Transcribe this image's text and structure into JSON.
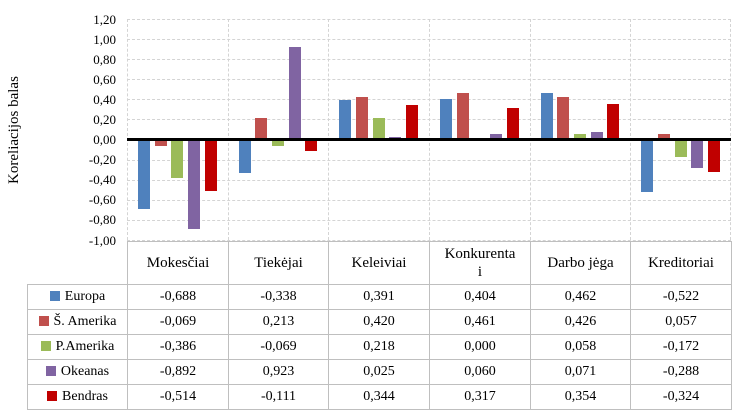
{
  "chart_data": {
    "type": "bar",
    "title": "",
    "xlabel": "",
    "ylabel": "Koreliacijos balas",
    "ylim": [
      -1.0,
      1.2
    ],
    "ytick_step": 0.2,
    "ytick_labels": [
      "1,20",
      "1,00",
      "0,80",
      "0,60",
      "0,40",
      "0,20",
      "0,00",
      "-0,20",
      "-0,40",
      "-0,60",
      "-0,80",
      "-1,00"
    ],
    "grid": true,
    "legend_position": "data-table-left",
    "decimal_separator": ",",
    "categories": [
      "Mokesčiai",
      "Tiekėjai",
      "Keleiviai",
      "Konkurentai",
      "Darbo jėga",
      "Kreditoriai"
    ],
    "category_display": [
      "Mokesčiai",
      "Tiekėjai",
      "Keleiviai",
      "Konkurenta\ni",
      "Darbo jėga",
      "Kreditoriai"
    ],
    "series": [
      {
        "name": "Europa",
        "color": "#4F81BD",
        "values": [
          -0.688,
          -0.338,
          0.391,
          0.404,
          0.462,
          -0.522
        ]
      },
      {
        "name": "Š. Amerika",
        "color": "#C0504D",
        "values": [
          -0.069,
          0.213,
          0.42,
          0.461,
          0.426,
          0.057
        ]
      },
      {
        "name": "P.Amerika",
        "color": "#9BBB59",
        "values": [
          -0.386,
          -0.069,
          0.218,
          0.0,
          0.058,
          -0.172
        ]
      },
      {
        "name": "Okeanas",
        "color": "#8064A2",
        "values": [
          -0.892,
          0.923,
          0.025,
          0.06,
          0.071,
          -0.288
        ]
      },
      {
        "name": "Bendras",
        "color": "#C00000",
        "values": [
          -0.514,
          -0.111,
          0.344,
          0.317,
          0.354,
          -0.324
        ]
      }
    ]
  }
}
